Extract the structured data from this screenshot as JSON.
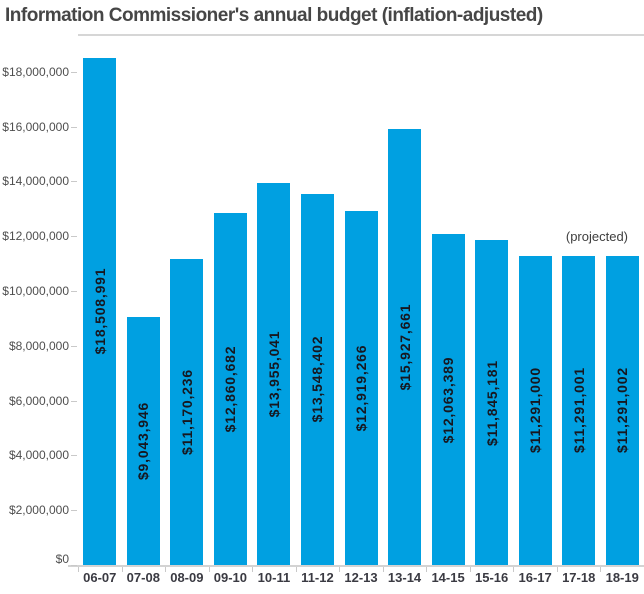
{
  "header": {
    "title": "Information Commissioner's annual budget (inflation-adjusted)"
  },
  "chart_data": {
    "type": "bar",
    "title": "Information Commissioner's annual budget (inflation-adjusted)",
    "categories": [
      "06-07",
      "07-08",
      "08-09",
      "09-10",
      "10-11",
      "11-12",
      "12-13",
      "13-14",
      "14-15",
      "15-16",
      "16-17",
      "17-18",
      "18-19"
    ],
    "values": [
      18508991,
      9043946,
      11170236,
      12860682,
      13955041,
      13548402,
      12919266,
      15927661,
      12063389,
      11845181,
      11291000,
      11291001,
      11291002
    ],
    "bar_labels": [
      "$18,508,991",
      "$9,043,946",
      "$11,170,236",
      "$12,860,682",
      "$13,955,041",
      "$13,548,402",
      "$12,919,266",
      "$15,927,661",
      "$12,063,389",
      "$11,845,181",
      "$11,291,000",
      "$11,291,001",
      "$11,291,002"
    ],
    "annotation": "(projected)",
    "xlabel": "",
    "ylabel": "",
    "ylim": [
      0,
      19400000
    ],
    "ytick_step": 2000000,
    "ytick_labels": [
      "$0",
      "$2,000,000",
      "$4,000,000",
      "$6,000,000",
      "$8,000,000",
      "$10,000,000",
      "$12,000,000",
      "$14,000,000",
      "$16,000,000",
      "$18,000,000"
    ],
    "grid": false,
    "legend": "none",
    "bar_color": "#00a0e1",
    "bar_label_color": "#17171f"
  }
}
